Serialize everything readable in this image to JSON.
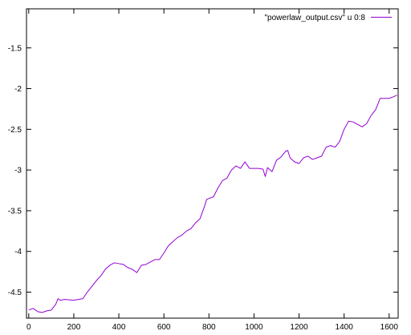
{
  "chart_data": {
    "type": "line",
    "title": "",
    "xlabel": "",
    "ylabel": "",
    "xlim": [
      -10,
      1640
    ],
    "ylim": [
      -4.82,
      -1.02
    ],
    "xticks": [
      0,
      200,
      400,
      600,
      800,
      1000,
      1200,
      1400,
      1600
    ],
    "yticks": [
      -4.5,
      -4,
      -3.5,
      -3,
      -2.5,
      -2,
      -1.5
    ],
    "xtick_labels": [
      "0",
      "200",
      "400",
      "600",
      "800",
      "1000",
      "1200",
      "1400",
      "1600"
    ],
    "ytick_labels": [
      "-4.5",
      "-4",
      "-3.5",
      "-3",
      "-2.5",
      "-2",
      "-1.5"
    ],
    "grid": false,
    "legend_position": "top-right",
    "series": [
      {
        "name": "\"powerlaw_output.csv\" u 0:8",
        "color": "#9400d3",
        "x": [
          0,
          20,
          40,
          60,
          80,
          100,
          120,
          130,
          140,
          160,
          200,
          240,
          260,
          280,
          300,
          320,
          340,
          360,
          380,
          400,
          420,
          440,
          460,
          480,
          500,
          520,
          540,
          560,
          580,
          600,
          620,
          640,
          660,
          680,
          700,
          720,
          740,
          760,
          780,
          790,
          800,
          820,
          840,
          860,
          880,
          900,
          920,
          940,
          960,
          980,
          1000,
          1020,
          1040,
          1050,
          1060,
          1080,
          1100,
          1120,
          1140,
          1150,
          1160,
          1180,
          1200,
          1220,
          1240,
          1260,
          1280,
          1300,
          1320,
          1340,
          1360,
          1380,
          1400,
          1420,
          1440,
          1460,
          1480,
          1500,
          1520,
          1540,
          1560,
          1580,
          1600,
          1620,
          1635
        ],
        "y": [
          -4.72,
          -4.7,
          -4.74,
          -4.75,
          -4.73,
          -4.72,
          -4.65,
          -4.58,
          -4.6,
          -4.59,
          -4.6,
          -4.58,
          -4.5,
          -4.43,
          -4.36,
          -4.3,
          -4.22,
          -4.17,
          -4.14,
          -4.15,
          -4.16,
          -4.2,
          -4.22,
          -4.26,
          -4.17,
          -4.16,
          -4.13,
          -4.1,
          -4.1,
          -4.02,
          -3.93,
          -3.88,
          -3.83,
          -3.8,
          -3.75,
          -3.72,
          -3.65,
          -3.6,
          -3.45,
          -3.36,
          -3.35,
          -3.33,
          -3.22,
          -3.13,
          -3.1,
          -3.0,
          -2.95,
          -2.98,
          -2.9,
          -2.98,
          -2.98,
          -2.98,
          -2.99,
          -3.08,
          -2.97,
          -3.02,
          -2.88,
          -2.84,
          -2.77,
          -2.76,
          -2.85,
          -2.9,
          -2.92,
          -2.85,
          -2.83,
          -2.87,
          -2.85,
          -2.83,
          -2.72,
          -2.7,
          -2.72,
          -2.65,
          -2.5,
          -2.4,
          -2.41,
          -2.44,
          -2.47,
          -2.43,
          -2.33,
          -2.26,
          -2.12,
          -2.12,
          -2.12,
          -2.1,
          -2.08
        ]
      }
    ]
  }
}
